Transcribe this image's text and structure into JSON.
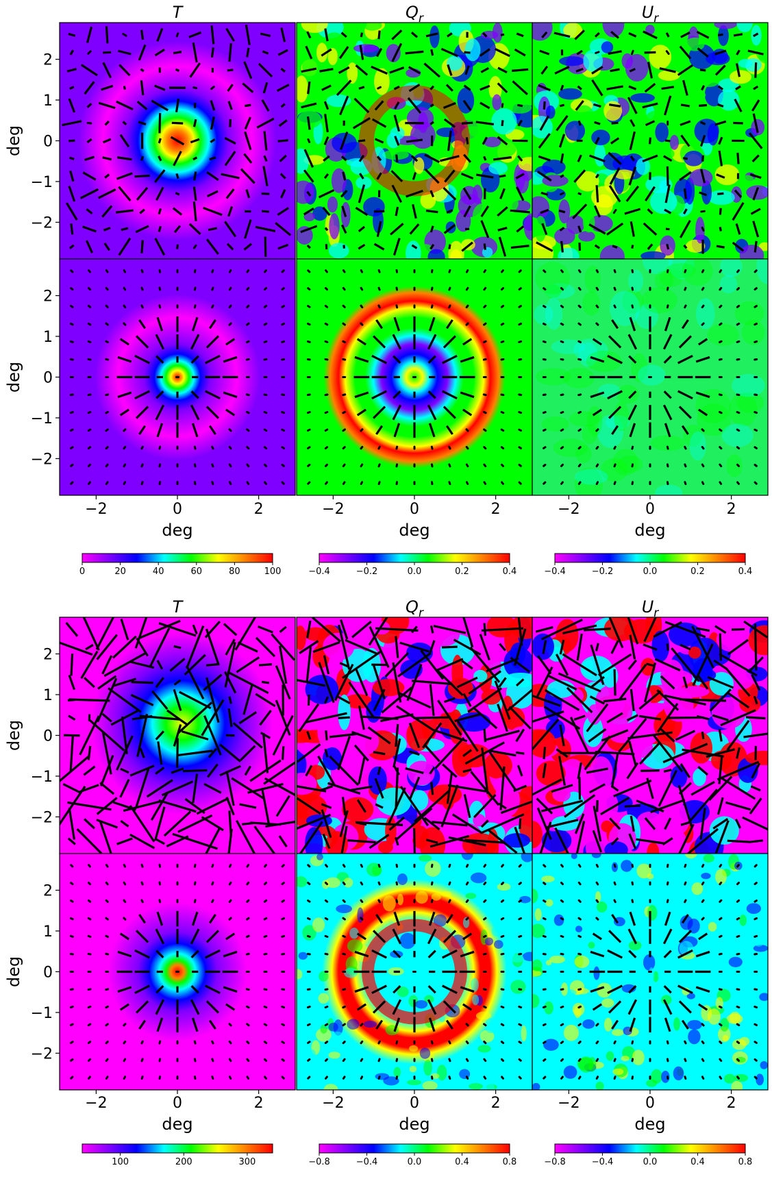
{
  "chart_data": {
    "type": "heatmap",
    "layout": "2 blocks x (2 rows x 3 columns) of maps with polarization headless-vector overlays",
    "x_axis": {
      "label": "deg",
      "range": [
        -2.9,
        2.9
      ],
      "ticks": [
        -2,
        0,
        2
      ],
      "tick_labels": [
        "−2",
        "0",
        "2"
      ]
    },
    "y_axis": {
      "label": "deg",
      "range": [
        -2.9,
        2.9
      ],
      "ticks": [
        2,
        1,
        0,
        -1,
        -2
      ],
      "tick_labels": [
        "2",
        "1",
        "0",
        "−1",
        "−2"
      ]
    },
    "colormap": "gist_rainbow_r (magenta-blue-cyan-green-yellow-red)",
    "blocks": [
      {
        "columns": [
          {
            "title_main": "T",
            "title_sub": ""
          },
          {
            "title_main": "Q",
            "title_sub": "r"
          },
          {
            "title_main": "U",
            "title_sub": "r"
          }
        ],
        "rows": [
          {
            "panels": [
              {
                "field": "T",
                "description": "noisy stack, central peak ~100 at origin, faint ring ~1 deg"
              },
              {
                "field": "Q_r",
                "description": "noisy stack with ring of positive Q_r at ~1 deg"
              },
              {
                "field": "U_r",
                "description": "noise-dominated"
              }
            ]
          },
          {
            "panels": [
              {
                "field": "T",
                "description": "clean stack, central peak at origin"
              },
              {
                "field": "Q_r",
                "description": "clean negative ring ~0.5 deg, positive ring ~1.3 deg"
              },
              {
                "field": "U_r",
                "description": "near zero everywhere"
              }
            ]
          }
        ],
        "colorbars": [
          {
            "field": "T",
            "range": [
              0,
              100
            ],
            "ticks": [
              0,
              20,
              40,
              60,
              80,
              100
            ],
            "tick_labels": [
              "0",
              "20",
              "40",
              "60",
              "80",
              "100"
            ]
          },
          {
            "field": "Q_r",
            "range": [
              -0.4,
              0.4
            ],
            "ticks": [
              -0.4,
              -0.2,
              0.0,
              0.2,
              0.4
            ],
            "tick_labels": [
              "−0.4",
              "−0.2",
              "0.0",
              "0.2",
              "0.4"
            ]
          },
          {
            "field": "U_r",
            "range": [
              -0.4,
              0.4
            ],
            "ticks": [
              -0.4,
              -0.2,
              0.0,
              0.2,
              0.4
            ],
            "tick_labels": [
              "−0.4",
              "−0.2",
              "0.0",
              "0.2",
              "0.4"
            ]
          }
        ]
      },
      {
        "columns": [
          {
            "title_main": "T",
            "title_sub": ""
          },
          {
            "title_main": "Q",
            "title_sub": "r"
          },
          {
            "title_main": "U",
            "title_sub": "r"
          }
        ],
        "rows": [
          {
            "panels": [
              {
                "field": "T",
                "description": "noisy, broad offset peak"
              },
              {
                "field": "Q_r",
                "description": "saturated noise"
              },
              {
                "field": "U_r",
                "description": "saturated noise"
              }
            ]
          },
          {
            "panels": [
              {
                "field": "T",
                "description": "clean stack, central peak ~340"
              },
              {
                "field": "Q_r",
                "description": "positive ring ~1.2 deg with background noise"
              },
              {
                "field": "U_r",
                "description": "noise around zero"
              }
            ]
          }
        ],
        "colorbars": [
          {
            "field": "T",
            "range": [
              40,
              340
            ],
            "ticks": [
              100,
              200,
              300
            ],
            "tick_labels": [
              "100",
              "200",
              "300"
            ]
          },
          {
            "field": "Q_r",
            "range": [
              -0.8,
              0.8
            ],
            "ticks": [
              -0.8,
              -0.4,
              0.0,
              0.4,
              0.8
            ],
            "tick_labels": [
              "−0.8",
              "−0.4",
              "0.0",
              "0.4",
              "0.8"
            ]
          },
          {
            "field": "U_r",
            "range": [
              -0.8,
              0.8
            ],
            "ticks": [
              -0.8,
              -0.4,
              0.0,
              0.4,
              0.8
            ],
            "tick_labels": [
              "−0.8",
              "−0.4",
              "0.0",
              "0.4",
              "0.8"
            ]
          }
        ]
      }
    ],
    "colors": {
      "magenta": "#ff00ff",
      "violet": "#8000ff",
      "blue": "#0000ff",
      "cyan": "#00ffff",
      "green": "#00ff00",
      "yellow": "#ffff00",
      "orange": "#ff8000",
      "red": "#ff0000",
      "vectors": "#000000"
    }
  }
}
